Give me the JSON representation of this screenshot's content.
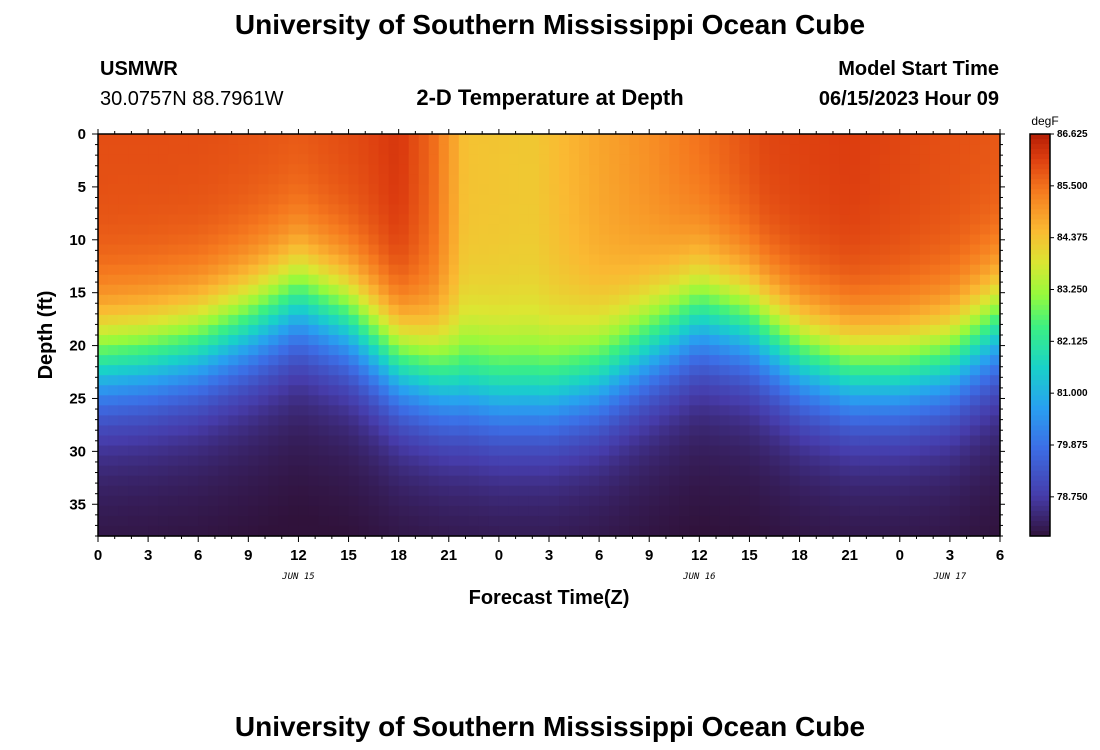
{
  "page": {
    "title": "University of Southern Mississippi Ocean Cube",
    "footer_title": "University of Southern Mississippi Ocean Cube",
    "station": "USMWR",
    "coords": "30.0757N  88.7961W",
    "subtitle": "2-D Temperature at Depth",
    "model_start_label": "Model Start Time",
    "model_start_value": "06/15/2023 Hour 09"
  },
  "chart_data": {
    "type": "heatmap",
    "title": "2-D Temperature at Depth",
    "xlabel": "Forecast Time(Z)",
    "ylabel": "Depth (ft)",
    "x_unit": "hours since 2023-06-15 00Z",
    "xlim": [
      0,
      54
    ],
    "ylim": [
      0,
      38
    ],
    "y_inverted": true,
    "x_ticks": [
      0,
      3,
      6,
      9,
      12,
      15,
      18,
      21,
      24,
      27,
      30,
      33,
      36,
      39,
      42,
      45,
      48,
      51,
      54
    ],
    "x_tick_labels": [
      "0",
      "3",
      "6",
      "9",
      "12",
      "15",
      "18",
      "21",
      "0",
      "3",
      "6",
      "9",
      "12",
      "15",
      "18",
      "21",
      "0",
      "3",
      "6"
    ],
    "y_ticks": [
      0,
      5,
      10,
      15,
      20,
      25,
      30,
      35
    ],
    "y_tick_labels": [
      "0",
      "5",
      "10",
      "15",
      "20",
      "25",
      "30",
      "35"
    ],
    "date_labels": [
      {
        "x": 12,
        "label": "JUN 15"
      },
      {
        "x": 36,
        "label": "JUN 16"
      },
      {
        "x": 51,
        "label": "JUN 17"
      }
    ],
    "colorbar": {
      "unit": "degF",
      "min": 77.9,
      "max": 86.625,
      "tick_values": [
        86.625,
        85.5,
        84.375,
        83.25,
        82.125,
        81.0,
        79.875,
        78.75
      ],
      "tick_labels": [
        "86.625",
        "85.500",
        "84.375",
        "83.250",
        "82.125",
        "81.000",
        "79.875",
        "78.750"
      ]
    },
    "thermocline_depth_ft": [
      {
        "x": 0,
        "depth": 21.5
      },
      {
        "x": 3,
        "depth": 21.0
      },
      {
        "x": 6,
        "depth": 20.0
      },
      {
        "x": 9,
        "depth": 18.0
      },
      {
        "x": 12,
        "depth": 15.5
      },
      {
        "x": 15,
        "depth": 17.5
      },
      {
        "x": 18,
        "depth": 21.5
      },
      {
        "x": 21,
        "depth": 23.5
      },
      {
        "x": 24,
        "depth": 24.5
      },
      {
        "x": 27,
        "depth": 24.5
      },
      {
        "x": 30,
        "depth": 23.0
      },
      {
        "x": 33,
        "depth": 20.0
      },
      {
        "x": 36,
        "depth": 17.0
      },
      {
        "x": 39,
        "depth": 18.0
      },
      {
        "x": 42,
        "depth": 21.0
      },
      {
        "x": 45,
        "depth": 22.5
      },
      {
        "x": 48,
        "depth": 22.5
      },
      {
        "x": 51,
        "depth": 21.5
      },
      {
        "x": 54,
        "depth": 18.0
      }
    ],
    "surface_temp_degF": [
      {
        "x": 0,
        "t": 85.9
      },
      {
        "x": 6,
        "t": 85.9
      },
      {
        "x": 12,
        "t": 85.8
      },
      {
        "x": 16,
        "t": 86.0
      },
      {
        "x": 18,
        "t": 86.2
      },
      {
        "x": 20,
        "t": 85.6
      },
      {
        "x": 22,
        "t": 84.4
      },
      {
        "x": 26,
        "t": 84.3
      },
      {
        "x": 30,
        "t": 84.8
      },
      {
        "x": 33,
        "t": 85.1
      },
      {
        "x": 36,
        "t": 85.5
      },
      {
        "x": 40,
        "t": 86.0
      },
      {
        "x": 45,
        "t": 86.1
      },
      {
        "x": 50,
        "t": 85.9
      },
      {
        "x": 54,
        "t": 85.8
      }
    ],
    "bottom_temp_degF": 78.3
  }
}
